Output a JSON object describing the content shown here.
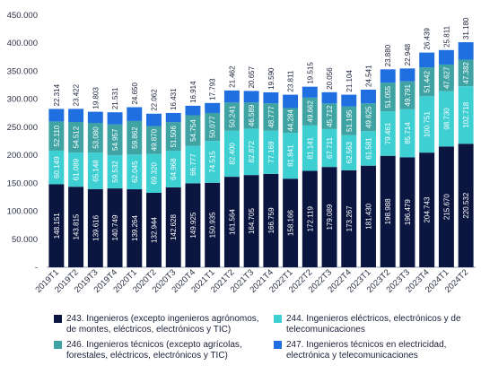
{
  "chart_data": {
    "type": "bar",
    "stacked": true,
    "categories": [
      "2019T1",
      "2019T2",
      "2019T3",
      "2019T4",
      "2020T1",
      "2020T2",
      "2020T3",
      "2020T4",
      "2021T1",
      "2021T2",
      "2021T3",
      "2021T4",
      "2022T1",
      "2022T2",
      "2022T3",
      "2022T4",
      "2023T1",
      "2023T2",
      "2023T3",
      "2023T4",
      "2024T1",
      "2024T2"
    ],
    "series": [
      {
        "name": "243. Ingenieros (excepto ingenieros agrónomos, de montes, eléctricos, electrónicos y TIC)",
        "color": "#0b1640",
        "values": [
          148151,
          143815,
          139616,
          140749,
          139264,
          132944,
          142628,
          149925,
          150935,
          161564,
          164705,
          166759,
          158166,
          172119,
          179089,
          173267,
          181430,
          198988,
          196479,
          204743,
          215670,
          220532
        ],
        "labels": [
          "148.151",
          "143.815",
          "139.616",
          "140.749",
          "139.264",
          "132.944",
          "142.628",
          "149.925",
          "150.935",
          "161.564",
          "164.705",
          "166.759",
          "158.166",
          "172.119",
          "179.089",
          "173.267",
          "181.430",
          "198.988",
          "196.479",
          "204.743",
          "215.670",
          "220.532"
        ]
      },
      {
        "name": "244. Ingenieros eléctricos, electrónicos y de telecomunicaciones",
        "color": "#3ecfd3",
        "values": [
          60149,
          61089,
          65148,
          59532,
          62045,
          69320,
          64968,
          66777,
          74515,
          82400,
          82872,
          77169,
          81841,
          81141,
          67711,
          62563,
          61581,
          79461,
          85714,
          100751,
          98730,
          102718
        ],
        "labels": [
          "60.149",
          "61.089",
          "65.148",
          "59.532",
          "62.045",
          "69.320",
          "64.968",
          "66.777",
          "74.515",
          "82.400",
          "82.872",
          "77.169",
          "81.841",
          "81.141",
          "67.711",
          "62.563",
          "61.581",
          "79.461",
          "85.714",
          "100.751",
          "98.730",
          "102.718"
        ]
      },
      {
        "name": "246. Ingenieros técnicos (excepto agrícolas, forestales, eléctricos, electrónicos y TIC)",
        "color": "#3fa3a3",
        "values": [
          52110,
          54512,
          53080,
          54957,
          59862,
          49870,
          51506,
          54754,
          50077,
          50241,
          46589,
          48777,
          44284,
          49662,
          45712,
          51195,
          49625,
          51055,
          49791,
          51442,
          47627,
          47382
        ],
        "labels": [
          "52.110",
          "54.512",
          "53.080",
          "54.957",
          "59.862",
          "49.870",
          "51.506",
          "54.754",
          "50.077",
          "50.241",
          "46.589",
          "48.777",
          "44.284",
          "49.662",
          "45.712",
          "51.195",
          "49.625",
          "51.055",
          "49.791",
          "51.442",
          "47.627",
          "47.382"
        ]
      },
      {
        "name": "247. Ingenieros técnicos en electricidad, electrónica y telecomunicaciones",
        "color": "#1f6fe0",
        "values": [
          22314,
          23422,
          19803,
          21531,
          24650,
          22062,
          16431,
          16914,
          17793,
          21462,
          20657,
          19590,
          23811,
          19515,
          20056,
          21104,
          24541,
          23880,
          22948,
          26439,
          25811,
          31180
        ],
        "labels": [
          "22.314",
          "23.422",
          "19.803",
          "21.531",
          "24.650",
          "22.062",
          "16.431",
          "16.914",
          "17.793",
          "21.462",
          "20.657",
          "19.590",
          "23.811",
          "19.515",
          "20.056",
          "21.104",
          "24.541",
          "23.880",
          "22.948",
          "26.439",
          "25.811",
          "31.180"
        ]
      }
    ],
    "yaxis": {
      "ylim": [
        0,
        450000
      ],
      "ticks": [
        0,
        50000,
        100000,
        150000,
        200000,
        250000,
        300000,
        350000,
        400000,
        450000
      ],
      "tick_labels": [
        "-",
        "50.000",
        "100.000",
        "150.000",
        "200.000",
        "250.000",
        "300.000",
        "350.000",
        "400.000",
        "450.000"
      ]
    },
    "grid": false,
    "legend_position": "bottom"
  }
}
